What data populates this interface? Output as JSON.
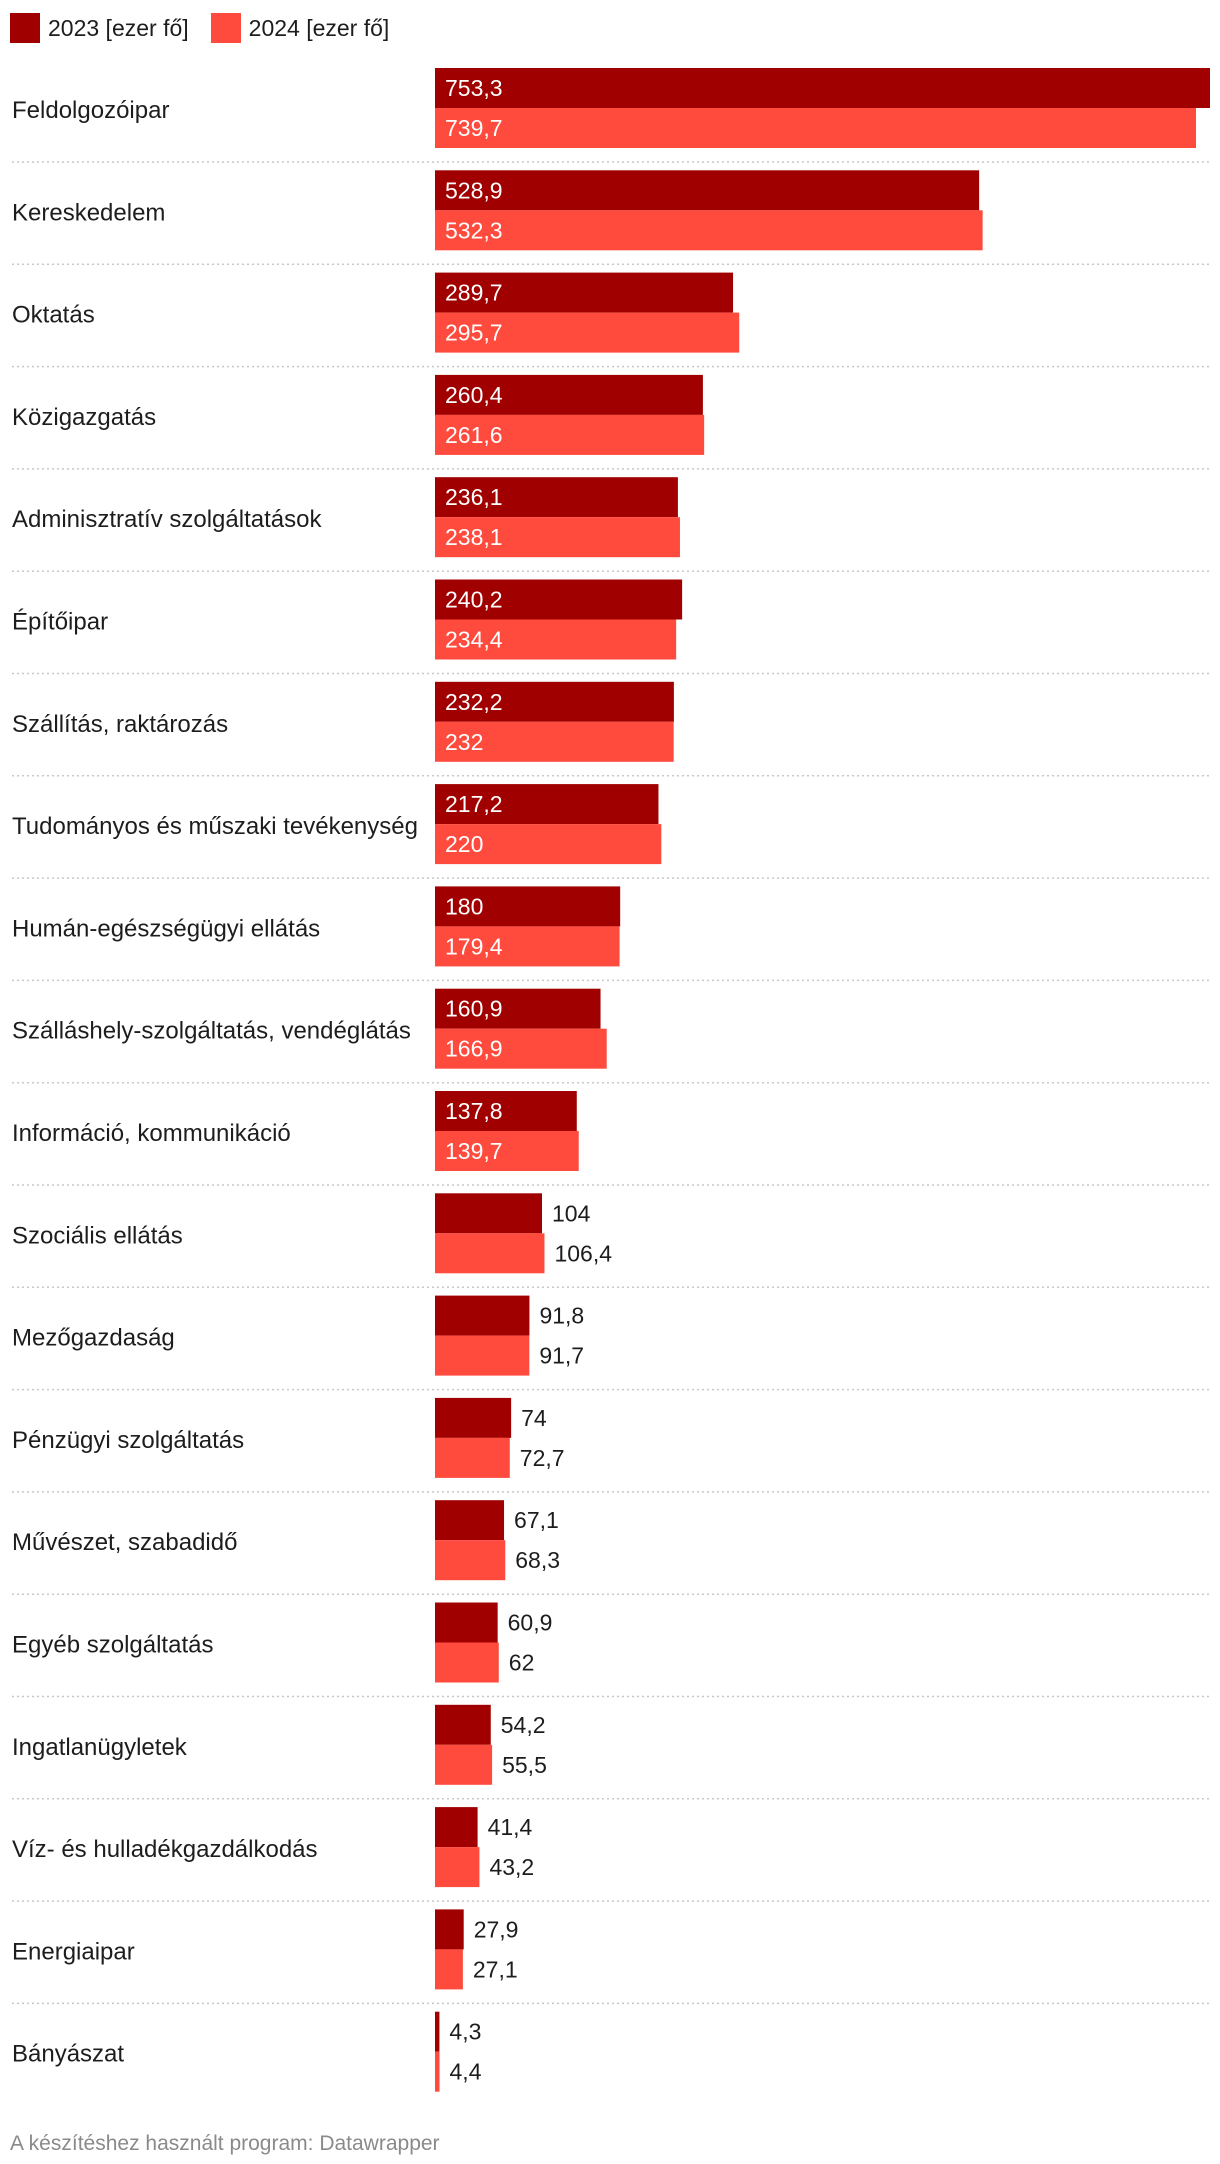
{
  "legend": [
    {
      "label": "2023 [ezer fő]",
      "color": "#a00000"
    },
    {
      "label": "2024 [ezer fő]",
      "color": "#ff4b3e"
    }
  ],
  "credit": "A készítéshez használt program: Datawrapper",
  "chart_data": {
    "type": "bar",
    "orientation": "horizontal",
    "categories": [
      "Feldolgozóipar",
      "Kereskedelem",
      "Oktatás",
      "Közigazgatás",
      "Adminisztratív szolgáltatások",
      "Építőipar",
      "Szállítás, raktározás",
      "Tudományos és műszaki tevékenység",
      "Humán-egészségügyi ellátás",
      "Szálláshely-szolgáltatás, vendéglátás",
      "Információ, kommunikáció",
      "Szociális ellátás",
      "Mezőgazdaság",
      "Pénzügyi szolgáltatás",
      "Művészet, szabadidő",
      "Egyéb szolgáltatás",
      "Ingatlanügyletek",
      "Víz- és hulladékgazdálkodás",
      "Energiaipar",
      "Bányászat"
    ],
    "series": [
      {
        "name": "2023 [ezer fő]",
        "color": "#a00000",
        "values": [
          753.3,
          528.9,
          289.7,
          260.4,
          236.1,
          240.2,
          232.2,
          217.2,
          180,
          160.9,
          137.8,
          104,
          91.8,
          74,
          67.1,
          60.9,
          54.2,
          41.4,
          27.9,
          4.3
        ],
        "labels": [
          "753,3",
          "528,9",
          "289,7",
          "260,4",
          "236,1",
          "240,2",
          "232,2",
          "217,2",
          "180",
          "160,9",
          "137,8",
          "104",
          "91,8",
          "74",
          "67,1",
          "60,9",
          "54,2",
          "41,4",
          "27,9",
          "4,3"
        ]
      },
      {
        "name": "2024 [ezer fő]",
        "color": "#ff4b3e",
        "values": [
          739.7,
          532.3,
          295.7,
          261.6,
          238.1,
          234.4,
          232,
          220,
          179.4,
          166.9,
          139.7,
          106.4,
          91.7,
          72.7,
          68.3,
          62,
          55.5,
          43.2,
          27.1,
          4.4
        ],
        "labels": [
          "739,7",
          "532,3",
          "295,7",
          "261,6",
          "238,1",
          "234,4",
          "232",
          "220",
          "179,4",
          "166,9",
          "139,7",
          "106,4",
          "91,7",
          "72,7",
          "68,3",
          "62",
          "55,5",
          "43,2",
          "27,1",
          "4,4"
        ]
      }
    ],
    "xlim": [
      0,
      753.3
    ],
    "grid": false,
    "legend_position": "top-left"
  }
}
